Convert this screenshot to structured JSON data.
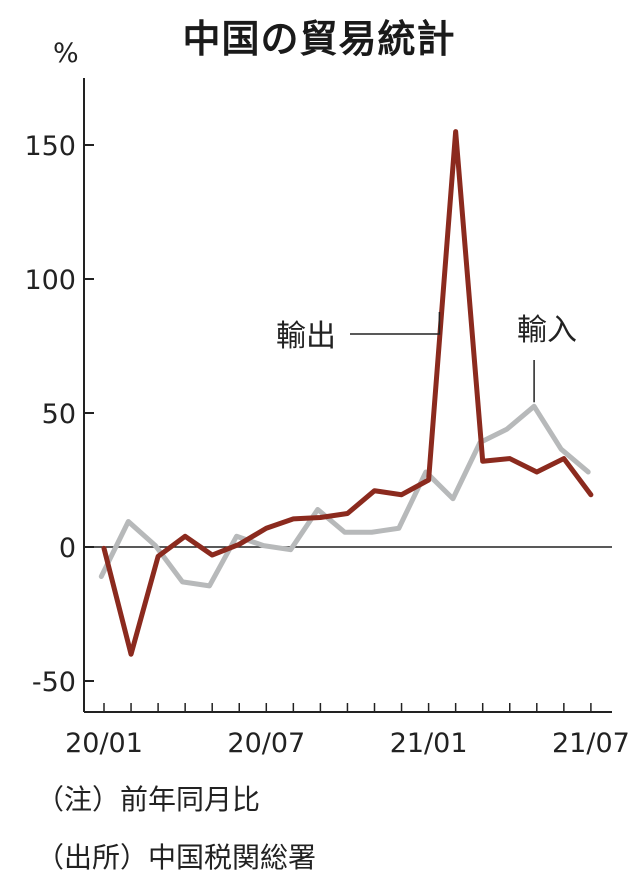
{
  "chart_data": {
    "type": "line",
    "title": "中国の貿易統計",
    "ylabel": "%",
    "ylim": [
      -60,
      175
    ],
    "yticks": [
      150,
      100,
      50,
      0,
      -50
    ],
    "ytick_labels": [
      "150",
      "100",
      "50",
      "0",
      "-50"
    ],
    "x": [
      "2020-01",
      "2020-02",
      "2020-03",
      "2020-04",
      "2020-05",
      "2020-06",
      "2020-07",
      "2020-08",
      "2020-09",
      "2020-10",
      "2020-11",
      "2020-12",
      "2021-01",
      "2021-02",
      "2021-03",
      "2021-04",
      "2021-05",
      "2021-06",
      "2021-07"
    ],
    "xtick_labels": [
      {
        "index": 0,
        "label": "20/01"
      },
      {
        "index": 6,
        "label": "20/07"
      },
      {
        "index": 12,
        "label": "21/01"
      },
      {
        "index": 18,
        "label": "21/07"
      }
    ],
    "series": [
      {
        "name": "輸出",
        "color": "#8b2a1e",
        "x_start": 0.0,
        "values": [
          -0.5,
          -40.0,
          -3.5,
          4.0,
          -3.0,
          1.0,
          7.0,
          10.5,
          11.0,
          12.5,
          21.0,
          19.5,
          25.0,
          155.0,
          32.0,
          33.0,
          28.0,
          33.0,
          19.5
        ]
      },
      {
        "name": "輸入",
        "color": "#b7b9ba",
        "x_start": -0.1,
        "values": [
          -11.0,
          9.5,
          0.5,
          -13.0,
          -14.5,
          4.0,
          0.5,
          -1.0,
          14.0,
          5.5,
          5.5,
          7.0,
          28.0,
          18.0,
          39.0,
          44.0,
          52.5,
          36.5,
          28.0
        ]
      }
    ],
    "annotations": [
      {
        "text": "輸出",
        "series": 0
      },
      {
        "text": "輸入",
        "series": 1
      }
    ],
    "grid": false,
    "legend": "none"
  },
  "notes": [
    "（注）前年同月比",
    "（出所）中国税関総署"
  ]
}
